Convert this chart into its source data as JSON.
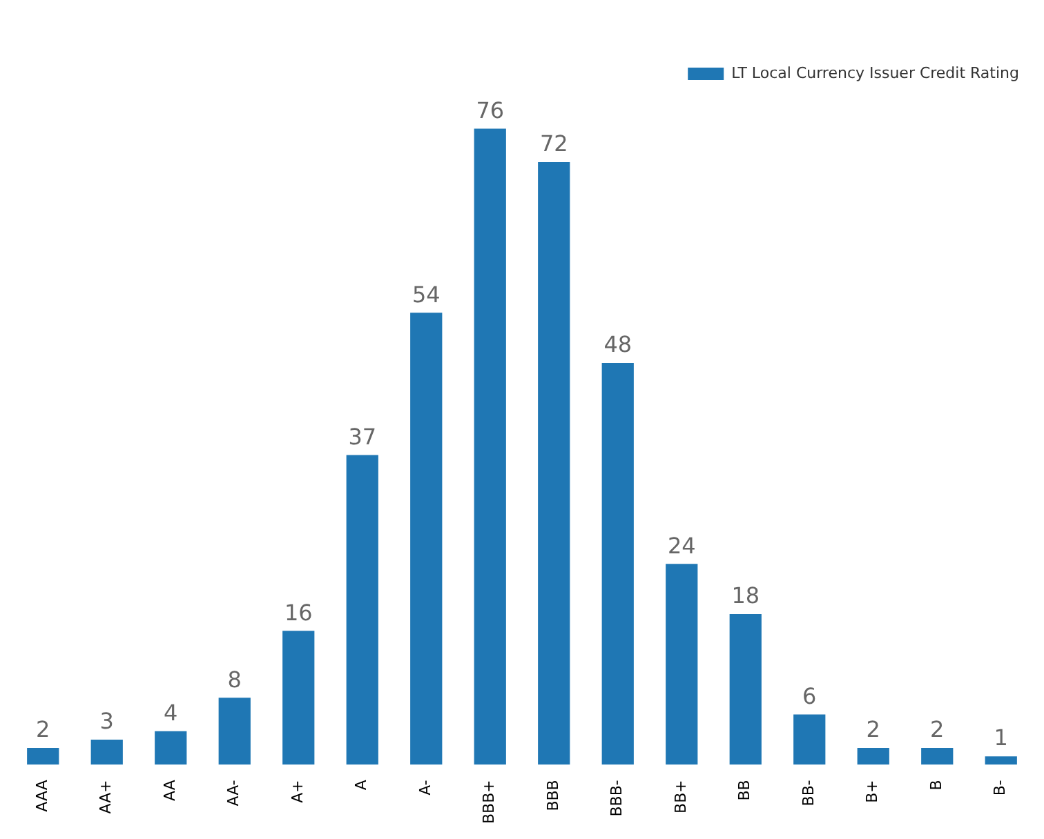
{
  "chart_data": {
    "type": "bar",
    "categories": [
      "AAA",
      "AA+",
      "AA",
      "AA-",
      "A+",
      "A",
      "A-",
      "BBB+",
      "BBB",
      "BBB-",
      "BB+",
      "BB",
      "BB-",
      "B+",
      "B",
      "B-"
    ],
    "series": [
      {
        "name": "LT Local Currency Issuer Credit Rating",
        "color": "#1f77b4",
        "values": [
          2,
          3,
          4,
          8,
          16,
          37,
          54,
          76,
          72,
          48,
          24,
          18,
          6,
          2,
          2,
          1
        ]
      }
    ],
    "data_labels": true,
    "legend": "top right",
    "grid": false
  }
}
